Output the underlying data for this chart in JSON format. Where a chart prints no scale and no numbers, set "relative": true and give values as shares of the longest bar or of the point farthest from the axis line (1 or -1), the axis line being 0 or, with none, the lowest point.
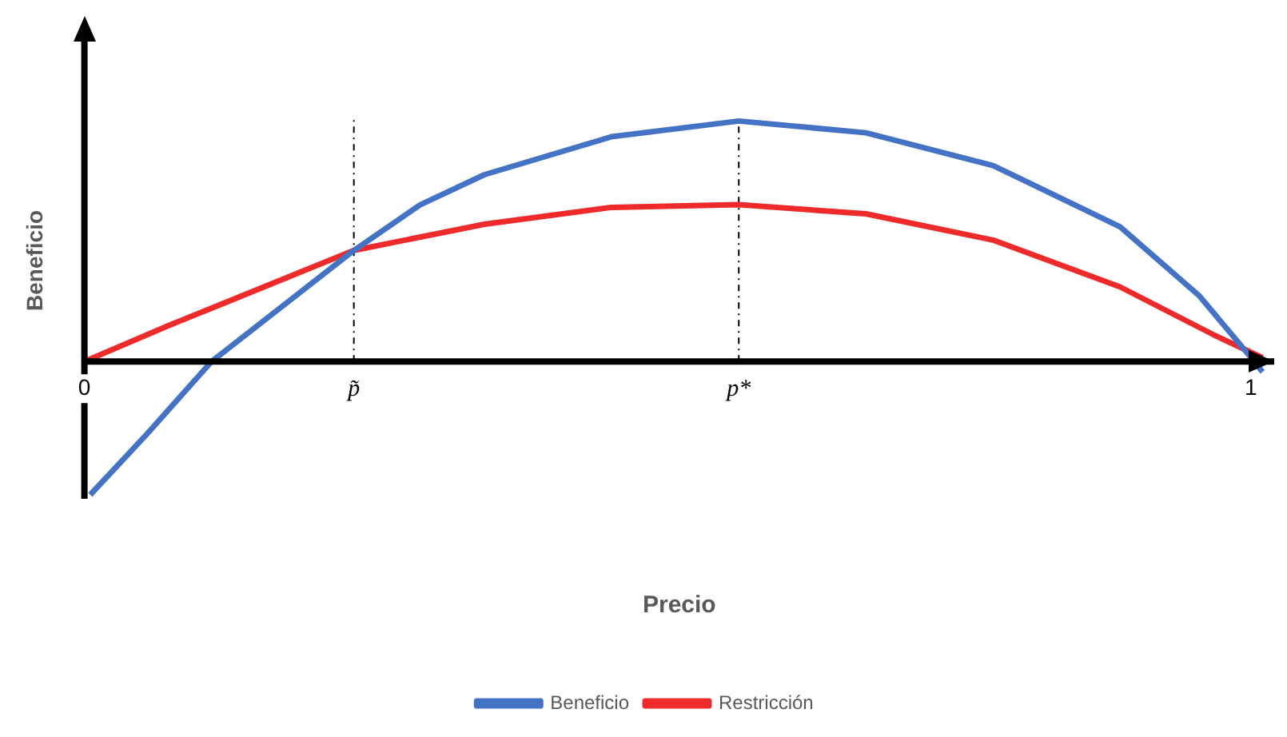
{
  "chart_data": {
    "type": "line",
    "relative": true,
    "xlabel": "Precio",
    "ylabel": "Beneficio",
    "grid": false,
    "legend": "bottom",
    "marker": "none",
    "line_style": "solid",
    "xlim": [
      0,
      1.02
    ],
    "xticks": [
      0,
      1
    ],
    "ref_lines": [
      {
        "axis": "x",
        "value": 0.231,
        "label": "p̃",
        "color": "#000000",
        "line_style": "dashed"
      },
      {
        "axis": "x",
        "value": 0.561,
        "label": "p*",
        "color": "#000000",
        "line_style": "dashed"
      }
    ],
    "series": [
      {
        "name": "Beneficio",
        "color": "#4472c4",
        "x": [
          0.005,
          0.054,
          0.109,
          0.231,
          0.288,
          0.343,
          0.452,
          0.561,
          0.67,
          0.779,
          0.888,
          0.956,
          1.003,
          1.01
        ],
        "values": [
          -0.554,
          -0.299,
          0,
          0.462,
          0.652,
          0.777,
          0.935,
          1,
          0.951,
          0.815,
          0.56,
          0.272,
          0,
          -0.043
        ]
      },
      {
        "name": "Restricción",
        "color": "#ee2a2a",
        "x": [
          0,
          0.071,
          0.231,
          0.343,
          0.452,
          0.561,
          0.67,
          0.779,
          0.888,
          0.969,
          1.01
        ],
        "values": [
          0,
          0.147,
          0.462,
          0.571,
          0.641,
          0.652,
          0.614,
          0.505,
          0.31,
          0.109,
          0.016
        ]
      }
    ]
  }
}
